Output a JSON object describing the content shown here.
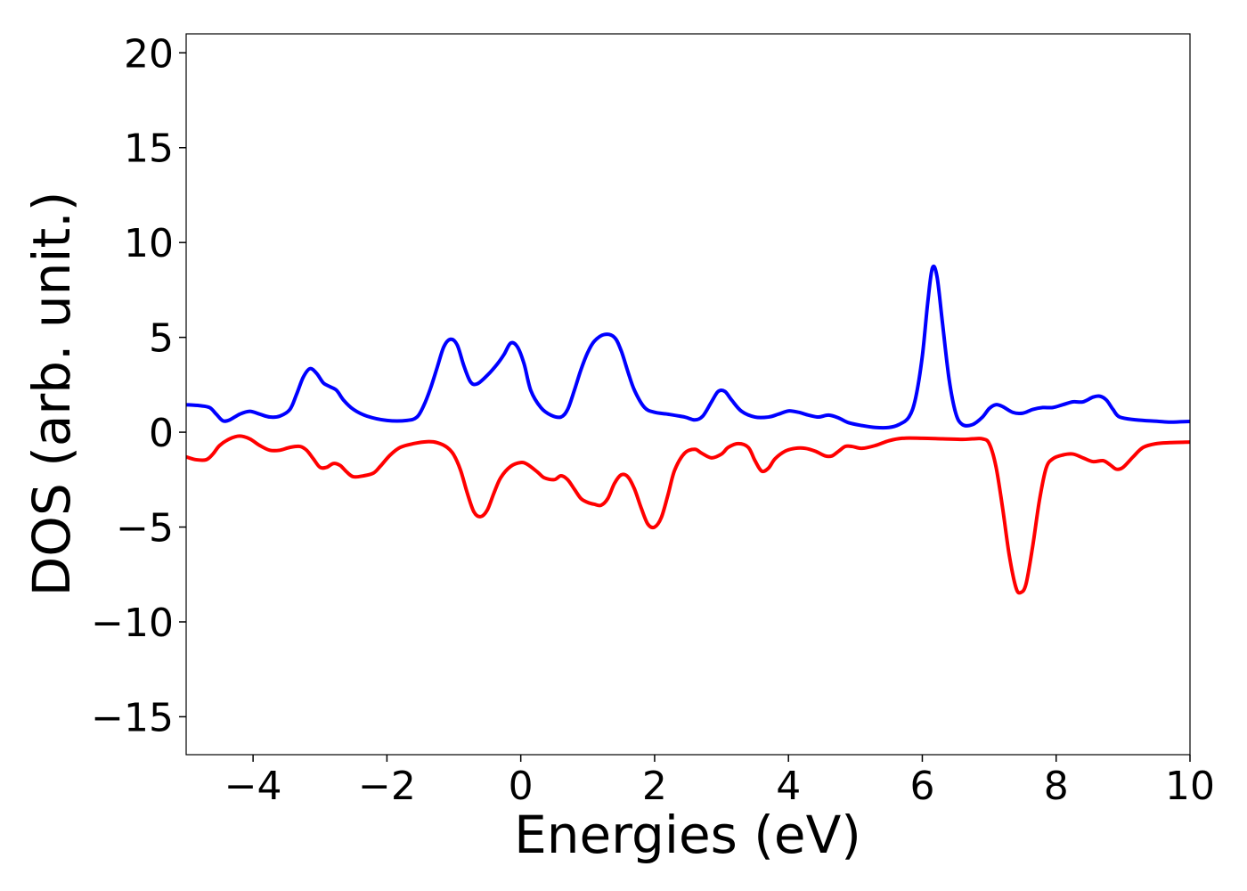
{
  "chart_data": {
    "type": "line",
    "title": "",
    "xlabel": "Energies (eV)",
    "ylabel": "DOS (arb. unit.)",
    "xlim": [
      -5,
      10
    ],
    "ylim": [
      -17,
      21
    ],
    "xticks": [
      -4,
      -2,
      0,
      2,
      4,
      6,
      8,
      10
    ],
    "yticks": [
      -15,
      -10,
      -5,
      0,
      5,
      10,
      15,
      20
    ],
    "xtick_labels": [
      "−4",
      "−2",
      "0",
      "2",
      "4",
      "6",
      "8",
      "10"
    ],
    "ytick_labels": [
      "−15",
      "−10",
      "−5",
      "0",
      "5",
      "10",
      "15",
      "20"
    ],
    "grid": false,
    "series": [
      {
        "color": "#0000ff",
        "points": [
          [
            -5.0,
            1.45
          ],
          [
            -4.8,
            1.4
          ],
          [
            -4.65,
            1.3
          ],
          [
            -4.55,
            0.95
          ],
          [
            -4.45,
            0.6
          ],
          [
            -4.35,
            0.65
          ],
          [
            -4.2,
            0.95
          ],
          [
            -4.05,
            1.1
          ],
          [
            -3.9,
            0.95
          ],
          [
            -3.75,
            0.8
          ],
          [
            -3.6,
            0.85
          ],
          [
            -3.45,
            1.2
          ],
          [
            -3.35,
            2.0
          ],
          [
            -3.25,
            2.9
          ],
          [
            -3.15,
            3.35
          ],
          [
            -3.05,
            3.1
          ],
          [
            -2.95,
            2.6
          ],
          [
            -2.85,
            2.4
          ],
          [
            -2.75,
            2.2
          ],
          [
            -2.65,
            1.7
          ],
          [
            -2.5,
            1.2
          ],
          [
            -2.3,
            0.85
          ],
          [
            -2.0,
            0.62
          ],
          [
            -1.7,
            0.62
          ],
          [
            -1.55,
            0.8
          ],
          [
            -1.45,
            1.4
          ],
          [
            -1.35,
            2.3
          ],
          [
            -1.25,
            3.4
          ],
          [
            -1.15,
            4.5
          ],
          [
            -1.05,
            4.9
          ],
          [
            -0.95,
            4.6
          ],
          [
            -0.85,
            3.5
          ],
          [
            -0.75,
            2.65
          ],
          [
            -0.65,
            2.55
          ],
          [
            -0.5,
            3.0
          ],
          [
            -0.35,
            3.6
          ],
          [
            -0.25,
            4.1
          ],
          [
            -0.15,
            4.7
          ],
          [
            -0.05,
            4.5
          ],
          [
            0.05,
            3.6
          ],
          [
            0.15,
            2.2
          ],
          [
            0.3,
            1.3
          ],
          [
            0.45,
            0.9
          ],
          [
            0.6,
            0.8
          ],
          [
            0.7,
            1.2
          ],
          [
            0.8,
            2.2
          ],
          [
            0.9,
            3.3
          ],
          [
            1.0,
            4.2
          ],
          [
            1.1,
            4.8
          ],
          [
            1.25,
            5.15
          ],
          [
            1.4,
            5.0
          ],
          [
            1.5,
            4.3
          ],
          [
            1.6,
            3.2
          ],
          [
            1.7,
            2.2
          ],
          [
            1.85,
            1.3
          ],
          [
            2.0,
            1.05
          ],
          [
            2.2,
            0.95
          ],
          [
            2.45,
            0.8
          ],
          [
            2.6,
            0.65
          ],
          [
            2.72,
            0.85
          ],
          [
            2.85,
            1.6
          ],
          [
            2.95,
            2.15
          ],
          [
            3.05,
            2.15
          ],
          [
            3.15,
            1.7
          ],
          [
            3.3,
            1.1
          ],
          [
            3.5,
            0.8
          ],
          [
            3.7,
            0.8
          ],
          [
            3.85,
            0.95
          ],
          [
            4.0,
            1.12
          ],
          [
            4.15,
            1.05
          ],
          [
            4.3,
            0.9
          ],
          [
            4.45,
            0.8
          ],
          [
            4.6,
            0.9
          ],
          [
            4.75,
            0.75
          ],
          [
            4.9,
            0.5
          ],
          [
            5.1,
            0.35
          ],
          [
            5.3,
            0.25
          ],
          [
            5.5,
            0.25
          ],
          [
            5.65,
            0.4
          ],
          [
            5.8,
            0.8
          ],
          [
            5.9,
            1.8
          ],
          [
            6.0,
            4.0
          ],
          [
            6.08,
            6.8
          ],
          [
            6.15,
            8.65
          ],
          [
            6.22,
            8.2
          ],
          [
            6.3,
            5.8
          ],
          [
            6.4,
            2.8
          ],
          [
            6.5,
            1.0
          ],
          [
            6.6,
            0.4
          ],
          [
            6.75,
            0.4
          ],
          [
            6.9,
            0.8
          ],
          [
            7.0,
            1.25
          ],
          [
            7.1,
            1.45
          ],
          [
            7.2,
            1.35
          ],
          [
            7.35,
            1.05
          ],
          [
            7.5,
            1.0
          ],
          [
            7.65,
            1.2
          ],
          [
            7.8,
            1.3
          ],
          [
            7.95,
            1.3
          ],
          [
            8.1,
            1.45
          ],
          [
            8.25,
            1.6
          ],
          [
            8.4,
            1.6
          ],
          [
            8.55,
            1.85
          ],
          [
            8.65,
            1.9
          ],
          [
            8.75,
            1.7
          ],
          [
            8.85,
            1.2
          ],
          [
            8.95,
            0.8
          ],
          [
            9.2,
            0.65
          ],
          [
            9.5,
            0.58
          ],
          [
            9.7,
            0.53
          ],
          [
            9.85,
            0.55
          ],
          [
            10.0,
            0.57
          ]
        ]
      },
      {
        "color": "#ff0000",
        "points": [
          [
            -5.0,
            -1.3
          ],
          [
            -4.85,
            -1.45
          ],
          [
            -4.7,
            -1.45
          ],
          [
            -4.6,
            -1.15
          ],
          [
            -4.5,
            -0.7
          ],
          [
            -4.35,
            -0.35
          ],
          [
            -4.2,
            -0.2
          ],
          [
            -4.05,
            -0.35
          ],
          [
            -3.9,
            -0.7
          ],
          [
            -3.75,
            -0.95
          ],
          [
            -3.6,
            -0.95
          ],
          [
            -3.45,
            -0.8
          ],
          [
            -3.3,
            -0.75
          ],
          [
            -3.2,
            -0.95
          ],
          [
            -3.1,
            -1.4
          ],
          [
            -3.0,
            -1.85
          ],
          [
            -2.9,
            -1.85
          ],
          [
            -2.8,
            -1.65
          ],
          [
            -2.7,
            -1.75
          ],
          [
            -2.6,
            -2.1
          ],
          [
            -2.5,
            -2.35
          ],
          [
            -2.35,
            -2.3
          ],
          [
            -2.2,
            -2.15
          ],
          [
            -2.1,
            -1.8
          ],
          [
            -1.95,
            -1.2
          ],
          [
            -1.8,
            -0.8
          ],
          [
            -1.6,
            -0.6
          ],
          [
            -1.4,
            -0.5
          ],
          [
            -1.25,
            -0.55
          ],
          [
            -1.1,
            -0.8
          ],
          [
            -1.0,
            -1.2
          ],
          [
            -0.9,
            -2.0
          ],
          [
            -0.8,
            -3.2
          ],
          [
            -0.7,
            -4.2
          ],
          [
            -0.6,
            -4.45
          ],
          [
            -0.5,
            -4.1
          ],
          [
            -0.4,
            -3.2
          ],
          [
            -0.3,
            -2.4
          ],
          [
            -0.15,
            -1.8
          ],
          [
            0.0,
            -1.6
          ],
          [
            0.1,
            -1.7
          ],
          [
            0.25,
            -2.1
          ],
          [
            0.35,
            -2.4
          ],
          [
            0.5,
            -2.5
          ],
          [
            0.6,
            -2.3
          ],
          [
            0.7,
            -2.5
          ],
          [
            0.8,
            -3.0
          ],
          [
            0.9,
            -3.5
          ],
          [
            1.0,
            -3.7
          ],
          [
            1.1,
            -3.8
          ],
          [
            1.2,
            -3.85
          ],
          [
            1.3,
            -3.5
          ],
          [
            1.4,
            -2.7
          ],
          [
            1.5,
            -2.25
          ],
          [
            1.6,
            -2.35
          ],
          [
            1.7,
            -3.0
          ],
          [
            1.8,
            -4.0
          ],
          [
            1.9,
            -4.85
          ],
          [
            2.0,
            -5.0
          ],
          [
            2.1,
            -4.5
          ],
          [
            2.2,
            -3.3
          ],
          [
            2.3,
            -2.0
          ],
          [
            2.45,
            -1.1
          ],
          [
            2.6,
            -0.9
          ],
          [
            2.7,
            -1.1
          ],
          [
            2.85,
            -1.35
          ],
          [
            3.0,
            -1.15
          ],
          [
            3.1,
            -0.8
          ],
          [
            3.25,
            -0.6
          ],
          [
            3.4,
            -0.8
          ],
          [
            3.5,
            -1.5
          ],
          [
            3.6,
            -2.05
          ],
          [
            3.7,
            -1.9
          ],
          [
            3.8,
            -1.4
          ],
          [
            3.95,
            -1.0
          ],
          [
            4.1,
            -0.85
          ],
          [
            4.25,
            -0.85
          ],
          [
            4.4,
            -1.0
          ],
          [
            4.55,
            -1.25
          ],
          [
            4.65,
            -1.25
          ],
          [
            4.75,
            -1.0
          ],
          [
            4.85,
            -0.75
          ],
          [
            4.95,
            -0.75
          ],
          [
            5.1,
            -0.85
          ],
          [
            5.3,
            -0.7
          ],
          [
            5.5,
            -0.45
          ],
          [
            5.7,
            -0.32
          ],
          [
            6.0,
            -0.32
          ],
          [
            6.3,
            -0.35
          ],
          [
            6.6,
            -0.38
          ],
          [
            6.75,
            -0.35
          ],
          [
            6.9,
            -0.35
          ],
          [
            7.0,
            -0.6
          ],
          [
            7.1,
            -1.8
          ],
          [
            7.2,
            -4.0
          ],
          [
            7.3,
            -6.5
          ],
          [
            7.4,
            -8.2
          ],
          [
            7.47,
            -8.45
          ],
          [
            7.55,
            -8.0
          ],
          [
            7.65,
            -6.0
          ],
          [
            7.75,
            -3.6
          ],
          [
            7.85,
            -1.9
          ],
          [
            7.95,
            -1.4
          ],
          [
            8.1,
            -1.2
          ],
          [
            8.25,
            -1.15
          ],
          [
            8.4,
            -1.35
          ],
          [
            8.55,
            -1.55
          ],
          [
            8.7,
            -1.5
          ],
          [
            8.8,
            -1.7
          ],
          [
            8.9,
            -1.95
          ],
          [
            9.0,
            -1.85
          ],
          [
            9.15,
            -1.3
          ],
          [
            9.3,
            -0.8
          ],
          [
            9.5,
            -0.6
          ],
          [
            9.7,
            -0.55
          ],
          [
            10.0,
            -0.52
          ]
        ]
      }
    ]
  }
}
